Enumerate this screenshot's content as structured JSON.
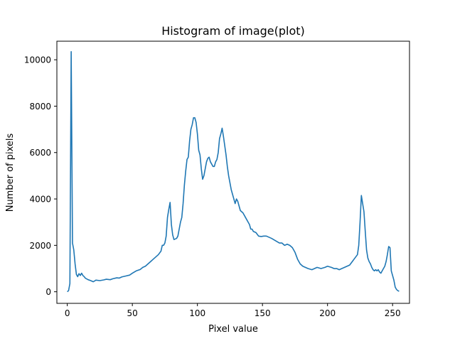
{
  "chart_data": {
    "type": "line",
    "title": "Histogram of image(plot)",
    "xlabel": "Pixel value",
    "ylabel": "Number of pixels",
    "xlim": [
      -8,
      263
    ],
    "ylim": [
      -500,
      10800
    ],
    "xticks": [
      0,
      50,
      100,
      150,
      200,
      250
    ],
    "yticks": [
      0,
      2000,
      4000,
      6000,
      8000,
      10000
    ],
    "grid": false,
    "series": [
      {
        "color": "#1f77b4",
        "points": [
          [
            0,
            0
          ],
          [
            1,
            50
          ],
          [
            2,
            350
          ],
          [
            3,
            10350
          ],
          [
            4,
            2100
          ],
          [
            5,
            1800
          ],
          [
            6,
            1200
          ],
          [
            7,
            750
          ],
          [
            8,
            650
          ],
          [
            9,
            780
          ],
          [
            10,
            700
          ],
          [
            11,
            800
          ],
          [
            12,
            700
          ],
          [
            13,
            650
          ],
          [
            14,
            580
          ],
          [
            15,
            550
          ],
          [
            16,
            520
          ],
          [
            18,
            480
          ],
          [
            20,
            430
          ],
          [
            22,
            500
          ],
          [
            25,
            480
          ],
          [
            28,
            510
          ],
          [
            30,
            540
          ],
          [
            33,
            520
          ],
          [
            35,
            560
          ],
          [
            38,
            600
          ],
          [
            40,
            590
          ],
          [
            42,
            640
          ],
          [
            45,
            680
          ],
          [
            48,
            720
          ],
          [
            50,
            800
          ],
          [
            53,
            900
          ],
          [
            56,
            960
          ],
          [
            58,
            1050
          ],
          [
            60,
            1100
          ],
          [
            62,
            1200
          ],
          [
            64,
            1300
          ],
          [
            66,
            1400
          ],
          [
            68,
            1500
          ],
          [
            70,
            1600
          ],
          [
            72,
            1750
          ],
          [
            73,
            2000
          ],
          [
            74,
            2000
          ],
          [
            75,
            2100
          ],
          [
            76,
            2400
          ],
          [
            77,
            3200
          ],
          [
            78,
            3550
          ],
          [
            79,
            3850
          ],
          [
            80,
            2900
          ],
          [
            81,
            2450
          ],
          [
            82,
            2250
          ],
          [
            84,
            2300
          ],
          [
            85,
            2400
          ],
          [
            86,
            2700
          ],
          [
            87,
            3000
          ],
          [
            88,
            3200
          ],
          [
            89,
            3800
          ],
          [
            90,
            4600
          ],
          [
            91,
            5200
          ],
          [
            92,
            5700
          ],
          [
            93,
            5800
          ],
          [
            94,
            6500
          ],
          [
            95,
            7000
          ],
          [
            96,
            7200
          ],
          [
            97,
            7500
          ],
          [
            98,
            7500
          ],
          [
            99,
            7300
          ],
          [
            100,
            6800
          ],
          [
            101,
            6100
          ],
          [
            102,
            5900
          ],
          [
            103,
            5300
          ],
          [
            104,
            4850
          ],
          [
            105,
            5000
          ],
          [
            106,
            5300
          ],
          [
            107,
            5600
          ],
          [
            108,
            5750
          ],
          [
            109,
            5800
          ],
          [
            110,
            5600
          ],
          [
            111,
            5500
          ],
          [
            112,
            5400
          ],
          [
            113,
            5400
          ],
          [
            114,
            5600
          ],
          [
            115,
            5700
          ],
          [
            116,
            6000
          ],
          [
            117,
            6600
          ],
          [
            118,
            6800
          ],
          [
            119,
            7050
          ],
          [
            120,
            6700
          ],
          [
            121,
            6300
          ],
          [
            122,
            5900
          ],
          [
            123,
            5400
          ],
          [
            124,
            5000
          ],
          [
            125,
            4700
          ],
          [
            126,
            4400
          ],
          [
            127,
            4200
          ],
          [
            128,
            4000
          ],
          [
            129,
            3800
          ],
          [
            130,
            4000
          ],
          [
            131,
            3900
          ],
          [
            132,
            3700
          ],
          [
            133,
            3500
          ],
          [
            135,
            3400
          ],
          [
            137,
            3200
          ],
          [
            139,
            3000
          ],
          [
            140,
            2900
          ],
          [
            141,
            2700
          ],
          [
            142,
            2700
          ],
          [
            143,
            2600
          ],
          [
            145,
            2550
          ],
          [
            147,
            2400
          ],
          [
            149,
            2380
          ],
          [
            151,
            2400
          ],
          [
            153,
            2400
          ],
          [
            155,
            2350
          ],
          [
            157,
            2300
          ],
          [
            160,
            2200
          ],
          [
            163,
            2100
          ],
          [
            165,
            2100
          ],
          [
            167,
            2000
          ],
          [
            169,
            2050
          ],
          [
            171,
            2000
          ],
          [
            173,
            1900
          ],
          [
            175,
            1700
          ],
          [
            177,
            1400
          ],
          [
            179,
            1200
          ],
          [
            181,
            1100
          ],
          [
            183,
            1050
          ],
          [
            185,
            1000
          ],
          [
            188,
            950
          ],
          [
            190,
            1000
          ],
          [
            192,
            1050
          ],
          [
            195,
            1000
          ],
          [
            198,
            1050
          ],
          [
            200,
            1100
          ],
          [
            203,
            1050
          ],
          [
            205,
            1000
          ],
          [
            207,
            1000
          ],
          [
            209,
            950
          ],
          [
            211,
            1000
          ],
          [
            213,
            1050
          ],
          [
            215,
            1100
          ],
          [
            217,
            1150
          ],
          [
            219,
            1300
          ],
          [
            221,
            1450
          ],
          [
            223,
            1600
          ],
          [
            224,
            2000
          ],
          [
            225,
            3000
          ],
          [
            226,
            4150
          ],
          [
            227,
            3800
          ],
          [
            228,
            3450
          ],
          [
            229,
            2600
          ],
          [
            230,
            1800
          ],
          [
            231,
            1450
          ],
          [
            232,
            1300
          ],
          [
            233,
            1200
          ],
          [
            234,
            1050
          ],
          [
            235,
            950
          ],
          [
            236,
            900
          ],
          [
            237,
            950
          ],
          [
            238,
            900
          ],
          [
            239,
            950
          ],
          [
            240,
            850
          ],
          [
            241,
            800
          ],
          [
            242,
            900
          ],
          [
            243,
            1000
          ],
          [
            244,
            1100
          ],
          [
            245,
            1300
          ],
          [
            246,
            1600
          ],
          [
            247,
            1950
          ],
          [
            248,
            1900
          ],
          [
            249,
            900
          ],
          [
            250,
            700
          ],
          [
            251,
            500
          ],
          [
            252,
            200
          ],
          [
            253,
            100
          ],
          [
            254,
            50
          ],
          [
            255,
            20
          ]
        ]
      }
    ]
  }
}
